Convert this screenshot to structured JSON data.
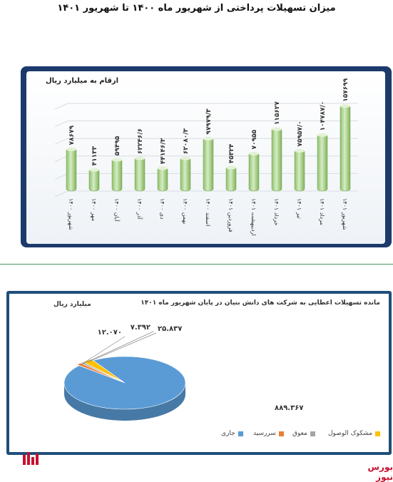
{
  "page": {
    "title": "میزان تسهیلات پرداختی از شهریور ماه ۱۴۰۰ تا شهریور ۱۴۰۱"
  },
  "chart_data": [
    {
      "type": "bar",
      "unit_label": "ارقام به میلیارد ریال",
      "categories": [
        "شهریور ۱۴۰۰",
        "مهر ۱۴۰۰",
        "آبان ۱۴۰۰",
        "آذر ۱۴۰۰",
        "دی ۱۴۰۰",
        "بهمن ۱۴۰۰",
        "اسفند ۱۴۰۰",
        "فروردین ۱۴۰۱",
        "اردیبهشت ۱۴۰۱",
        "خرداد ۱۴۰۱",
        "تیر ۱۴۰۱",
        "مرداد ۱۴۰۱",
        "شهریور ۱۴۰۱"
      ],
      "values": [
        78679,
        41133,
        59495,
        62246.6,
        44146.3,
        62080.3,
        97979.3,
        45324,
        70955,
        115627,
        75957,
        104787,
        157699
      ],
      "value_labels": [
        "۷۸۶۷۹",
        "۴۱۱۳۳",
        "۵۹۴۹۵",
        "۶۲۲۴۶/۶",
        "۴۴۱۴۶/۳",
        "۶۲۰۸۰/۳",
        "۹۷۹۷۹/۳",
        "۴۵۳۲۴",
        "۷۰۹۵۵",
        "۱۱۵۶۲۷",
        "۷۵۹۵۷/۰",
        "۱۰۴۷۸۷/۰",
        "۱۵۷۶۹۹"
      ],
      "ylim": [
        0,
        160000
      ],
      "grid": true,
      "colors": {
        "bar": "#a8d08d",
        "bar_dark": "#7fb35a",
        "panel": "#1c3a6b"
      }
    },
    {
      "type": "pie",
      "title": "مانده تسهیلات اعطایی به شرکت های دانش بنیان در پایان شهریور ماه ۱۴۰۱",
      "unit_label": "میلیارد ریال",
      "slices": [
        {
          "name": "جاری",
          "value": 889367,
          "label": "۸۸۹.۳۶۷",
          "color": "#5b9bd5"
        },
        {
          "name": "سررسید",
          "value": 12070,
          "label": "۱۲.۰۷۰",
          "color": "#ed7d31"
        },
        {
          "name": "معوق",
          "value": 7392,
          "label": "۷.۳۹۲",
          "color": "#a5a5a5"
        },
        {
          "name": "مشکوک الوصول",
          "value": 25837,
          "label": "۲۵.۸۳۷",
          "color": "#ffc000"
        }
      ]
    }
  ],
  "watermark": "بورس نیوز"
}
